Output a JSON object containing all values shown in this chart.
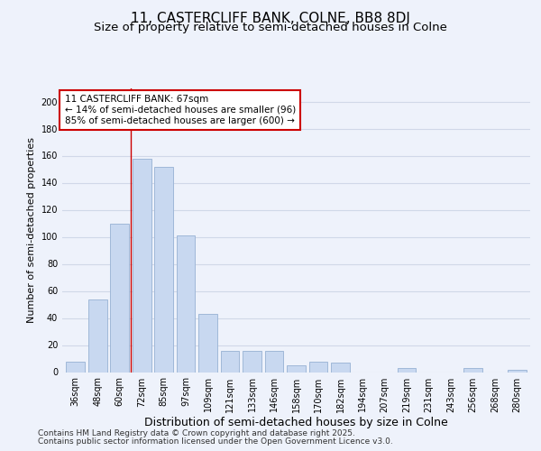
{
  "title": "11, CASTERCLIFF BANK, COLNE, BB8 8DJ",
  "subtitle": "Size of property relative to semi-detached houses in Colne",
  "xlabel": "Distribution of semi-detached houses by size in Colne",
  "ylabel": "Number of semi-detached properties",
  "bar_color": "#c8d8f0",
  "bar_edge_color": "#a0b8d8",
  "categories": [
    "36sqm",
    "48sqm",
    "60sqm",
    "72sqm",
    "85sqm",
    "97sqm",
    "109sqm",
    "121sqm",
    "133sqm",
    "146sqm",
    "158sqm",
    "170sqm",
    "182sqm",
    "194sqm",
    "207sqm",
    "219sqm",
    "231sqm",
    "243sqm",
    "256sqm",
    "268sqm",
    "280sqm"
  ],
  "values": [
    8,
    54,
    110,
    158,
    152,
    101,
    43,
    16,
    16,
    16,
    5,
    8,
    7,
    0,
    0,
    3,
    0,
    0,
    3,
    0,
    2
  ],
  "ylim": [
    0,
    210
  ],
  "yticks": [
    0,
    20,
    40,
    60,
    80,
    100,
    120,
    140,
    160,
    180,
    200
  ],
  "vline_x": 2.5,
  "annotation_line1": "11 CASTERCLIFF BANK: 67sqm",
  "annotation_line2": "← 14% of semi-detached houses are smaller (96)",
  "annotation_line3": "85% of semi-detached houses are larger (600) →",
  "annotation_box_color": "#ffffff",
  "annotation_box_edge_color": "#cc0000",
  "vline_color": "#cc0000",
  "grid_color": "#d0d8e8",
  "background_color": "#eef2fb",
  "footer_line1": "Contains HM Land Registry data © Crown copyright and database right 2025.",
  "footer_line2": "Contains public sector information licensed under the Open Government Licence v3.0.",
  "title_fontsize": 11,
  "subtitle_fontsize": 9.5,
  "xlabel_fontsize": 9,
  "ylabel_fontsize": 8,
  "tick_fontsize": 7,
  "annotation_fontsize": 7.5,
  "footer_fontsize": 6.5
}
